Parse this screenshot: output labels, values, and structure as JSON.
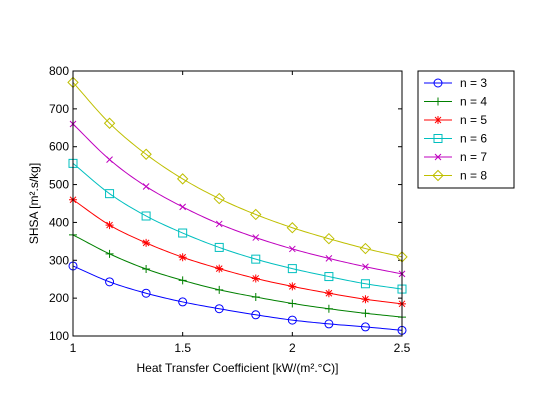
{
  "chart_data": {
    "type": "line",
    "xlabel": "Heat Transfer Coefficient [kW/(m².°C)]",
    "ylabel": "SHSA [m².s/kg]",
    "xlim": [
      1,
      2.5
    ],
    "ylim": [
      100,
      800
    ],
    "xticks": [
      1,
      1.5,
      2,
      2.5
    ],
    "yticks": [
      100,
      200,
      300,
      400,
      500,
      600,
      700,
      800
    ],
    "grid": false,
    "legend_position": "outside-top-right",
    "x": [
      1.0,
      1.1667,
      1.3333,
      1.5,
      1.6667,
      1.8333,
      2.0,
      2.1667,
      2.3333,
      2.5
    ],
    "series": [
      {
        "name": "n = 3",
        "color": "#0000ff",
        "marker": "circle",
        "values": [
          285,
          243,
          213,
          190,
          172,
          156,
          142,
          132,
          124,
          115
        ]
      },
      {
        "name": "n = 4",
        "color": "#008000",
        "marker": "plus",
        "values": [
          367,
          317,
          277,
          247,
          222,
          203,
          186,
          172,
          160,
          150
        ]
      },
      {
        "name": "n = 5",
        "color": "#ff0000",
        "marker": "star",
        "values": [
          460,
          393,
          346,
          308,
          278,
          252,
          231,
          213,
          197,
          185
        ]
      },
      {
        "name": "n = 6",
        "color": "#00bfbf",
        "marker": "square",
        "values": [
          556,
          476,
          417,
          372,
          334,
          303,
          278,
          257,
          238,
          224
        ]
      },
      {
        "name": "n = 7",
        "color": "#bf00bf",
        "marker": "cross",
        "values": [
          660,
          566,
          495,
          441,
          396,
          360,
          330,
          305,
          283,
          264
        ]
      },
      {
        "name": "n = 8",
        "color": "#bfbf00",
        "marker": "diamond",
        "values": [
          770,
          662,
          580,
          515,
          463,
          421,
          386,
          357,
          331,
          309
        ]
      }
    ]
  }
}
